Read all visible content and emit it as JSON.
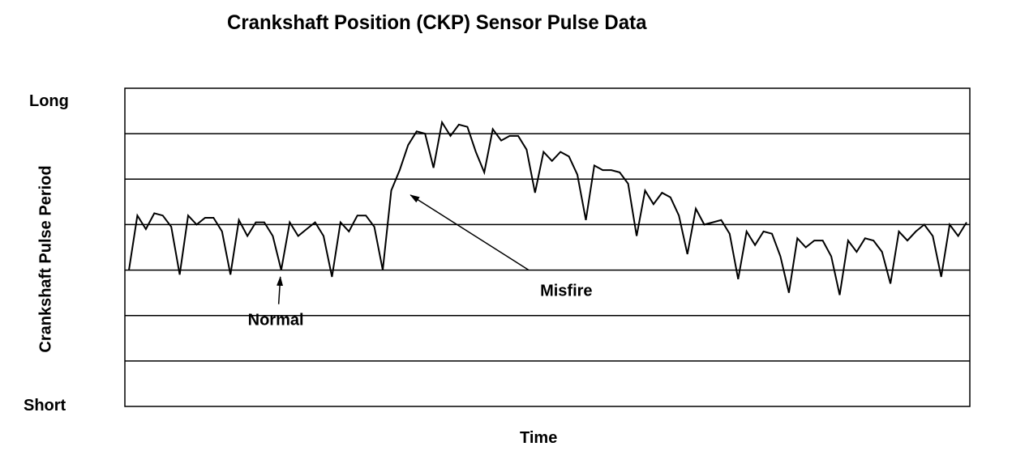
{
  "chart_data": {
    "type": "line",
    "title": "Crankshaft Position (CKP) Sensor Pulse Data",
    "xlabel": "Time",
    "ylabel": "Crankshaft Pulse Period",
    "y_top_label": "Long",
    "y_bottom_label": "Short",
    "ylim": [
      0,
      7
    ],
    "gridlines": [
      1,
      2,
      3,
      4,
      5,
      6
    ],
    "grid": true,
    "legend": "none",
    "line_color": "#000000",
    "series": [
      {
        "values": [
          3.0,
          4.2,
          3.9,
          4.25,
          4.2,
          3.95,
          2.9,
          4.2,
          4.0,
          4.15,
          4.15,
          3.85,
          2.9,
          4.1,
          3.75,
          4.05,
          4.05,
          3.75,
          3.0,
          4.05,
          3.75,
          3.9,
          4.05,
          3.75,
          2.85,
          4.05,
          3.85,
          4.2,
          4.2,
          3.95,
          3.0,
          4.75,
          5.2,
          5.75,
          6.05,
          6.0,
          5.25,
          6.25,
          5.95,
          6.2,
          6.15,
          5.6,
          5.15,
          6.1,
          5.85,
          5.95,
          5.95,
          5.65,
          4.7,
          5.6,
          5.4,
          5.6,
          5.5,
          5.1,
          4.1,
          5.3,
          5.2,
          5.2,
          5.15,
          4.9,
          3.75,
          4.75,
          4.45,
          4.7,
          4.6,
          4.2,
          3.35,
          4.35,
          4.0,
          4.05,
          4.1,
          3.8,
          2.8,
          3.85,
          3.55,
          3.85,
          3.8,
          3.3,
          2.5,
          3.7,
          3.5,
          3.65,
          3.65,
          3.3,
          2.45,
          3.65,
          3.4,
          3.7,
          3.65,
          3.4,
          2.7,
          3.85,
          3.65,
          3.85,
          4.0,
          3.75,
          2.85,
          4.0,
          3.75,
          4.05
        ]
      }
    ],
    "annotations": [
      {
        "text": "Normal",
        "arrow_target_x": 0.184,
        "arrow_target_y": 2.85,
        "arrow_tail_x": 0.182,
        "arrow_tail_y": 2.25
      },
      {
        "text": "Misfire",
        "arrow_target_x": 0.338,
        "arrow_target_y": 4.65,
        "arrow_tail_x": 0.478,
        "arrow_tail_y": 3.0
      }
    ]
  }
}
